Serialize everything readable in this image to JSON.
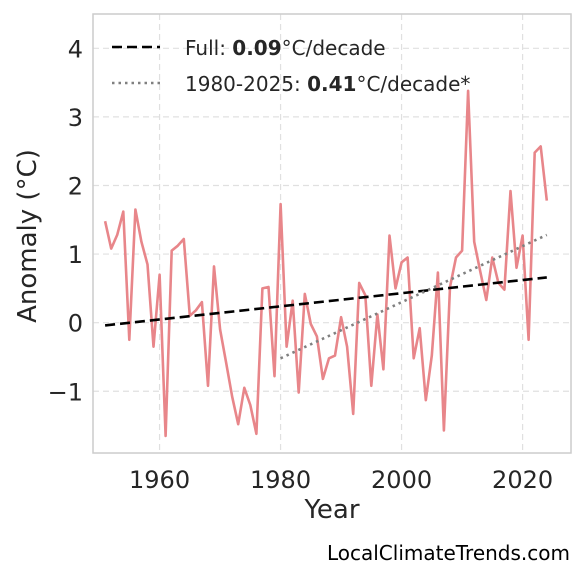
{
  "chart_data": {
    "type": "line",
    "xlabel": "Year",
    "ylabel": "Anomaly (°C)",
    "xlim": [
      1949,
      2028
    ],
    "ylim": [
      -1.9,
      4.5
    ],
    "xticks": [
      1960,
      1980,
      2000,
      2020
    ],
    "yticks": [
      -1,
      0,
      1,
      2,
      3,
      4
    ],
    "ytick_labels": [
      "−1",
      "0",
      "1",
      "2",
      "3",
      "4"
    ],
    "grid": true,
    "legend_position": "top-left",
    "series": [
      {
        "role": "anomaly",
        "color": "#e8868a",
        "x": [
          1951,
          1952,
          1953,
          1954,
          1955,
          1956,
          1957,
          1958,
          1959,
          1960,
          1961,
          1962,
          1963,
          1964,
          1965,
          1966,
          1967,
          1968,
          1969,
          1970,
          1971,
          1972,
          1973,
          1974,
          1975,
          1976,
          1977,
          1978,
          1979,
          1980,
          1981,
          1982,
          1983,
          1984,
          1985,
          1986,
          1987,
          1988,
          1989,
          1990,
          1991,
          1992,
          1993,
          1994,
          1995,
          1996,
          1997,
          1998,
          1999,
          2000,
          2001,
          2002,
          2003,
          2004,
          2005,
          2006,
          2007,
          2008,
          2009,
          2010,
          2011,
          2012,
          2013,
          2014,
          2015,
          2016,
          2017,
          2018,
          2019,
          2020,
          2021,
          2022,
          2023,
          2024
        ],
        "y": [
          1.48,
          1.08,
          1.28,
          1.62,
          -0.25,
          1.65,
          1.18,
          0.85,
          -0.35,
          0.7,
          -1.65,
          1.05,
          1.12,
          1.22,
          0.1,
          0.18,
          0.3,
          -0.92,
          0.82,
          -0.1,
          -0.58,
          -1.08,
          -1.48,
          -0.95,
          -1.2,
          -1.62,
          0.5,
          0.52,
          -0.78,
          1.73,
          -0.35,
          0.32,
          -1.02,
          0.42,
          -0.02,
          -0.2,
          -0.82,
          -0.52,
          -0.48,
          0.08,
          -0.35,
          -1.33,
          0.58,
          0.4,
          -0.92,
          0.12,
          -0.68,
          1.27,
          0.5,
          0.88,
          0.95,
          -0.52,
          -0.08,
          -1.13,
          -0.48,
          0.73,
          -1.57,
          0.52,
          0.95,
          1.05,
          3.38,
          1.18,
          0.75,
          0.33,
          0.95,
          0.58,
          0.48,
          1.92,
          0.8,
          1.27,
          -0.25,
          2.48,
          2.57,
          1.78
        ]
      },
      {
        "role": "full_trend",
        "color": "#000000",
        "style": "dashed",
        "x": [
          1951,
          2024
        ],
        "y": [
          -0.04,
          0.66
        ]
      },
      {
        "role": "recent_trend",
        "color": "#808080",
        "style": "dotted",
        "x": [
          1980,
          2024
        ],
        "y": [
          -0.52,
          1.28
        ]
      }
    ],
    "legend": [
      {
        "style": "dashed",
        "color": "#000000",
        "prefix": "Full: ",
        "value": "0.09",
        "suffix": "°C/decade"
      },
      {
        "style": "dotted",
        "color": "#808080",
        "prefix": "1980-2025: ",
        "value": "0.41",
        "suffix": "°C/decade*"
      }
    ]
  },
  "watermark": "LocalClimateTrends.com"
}
